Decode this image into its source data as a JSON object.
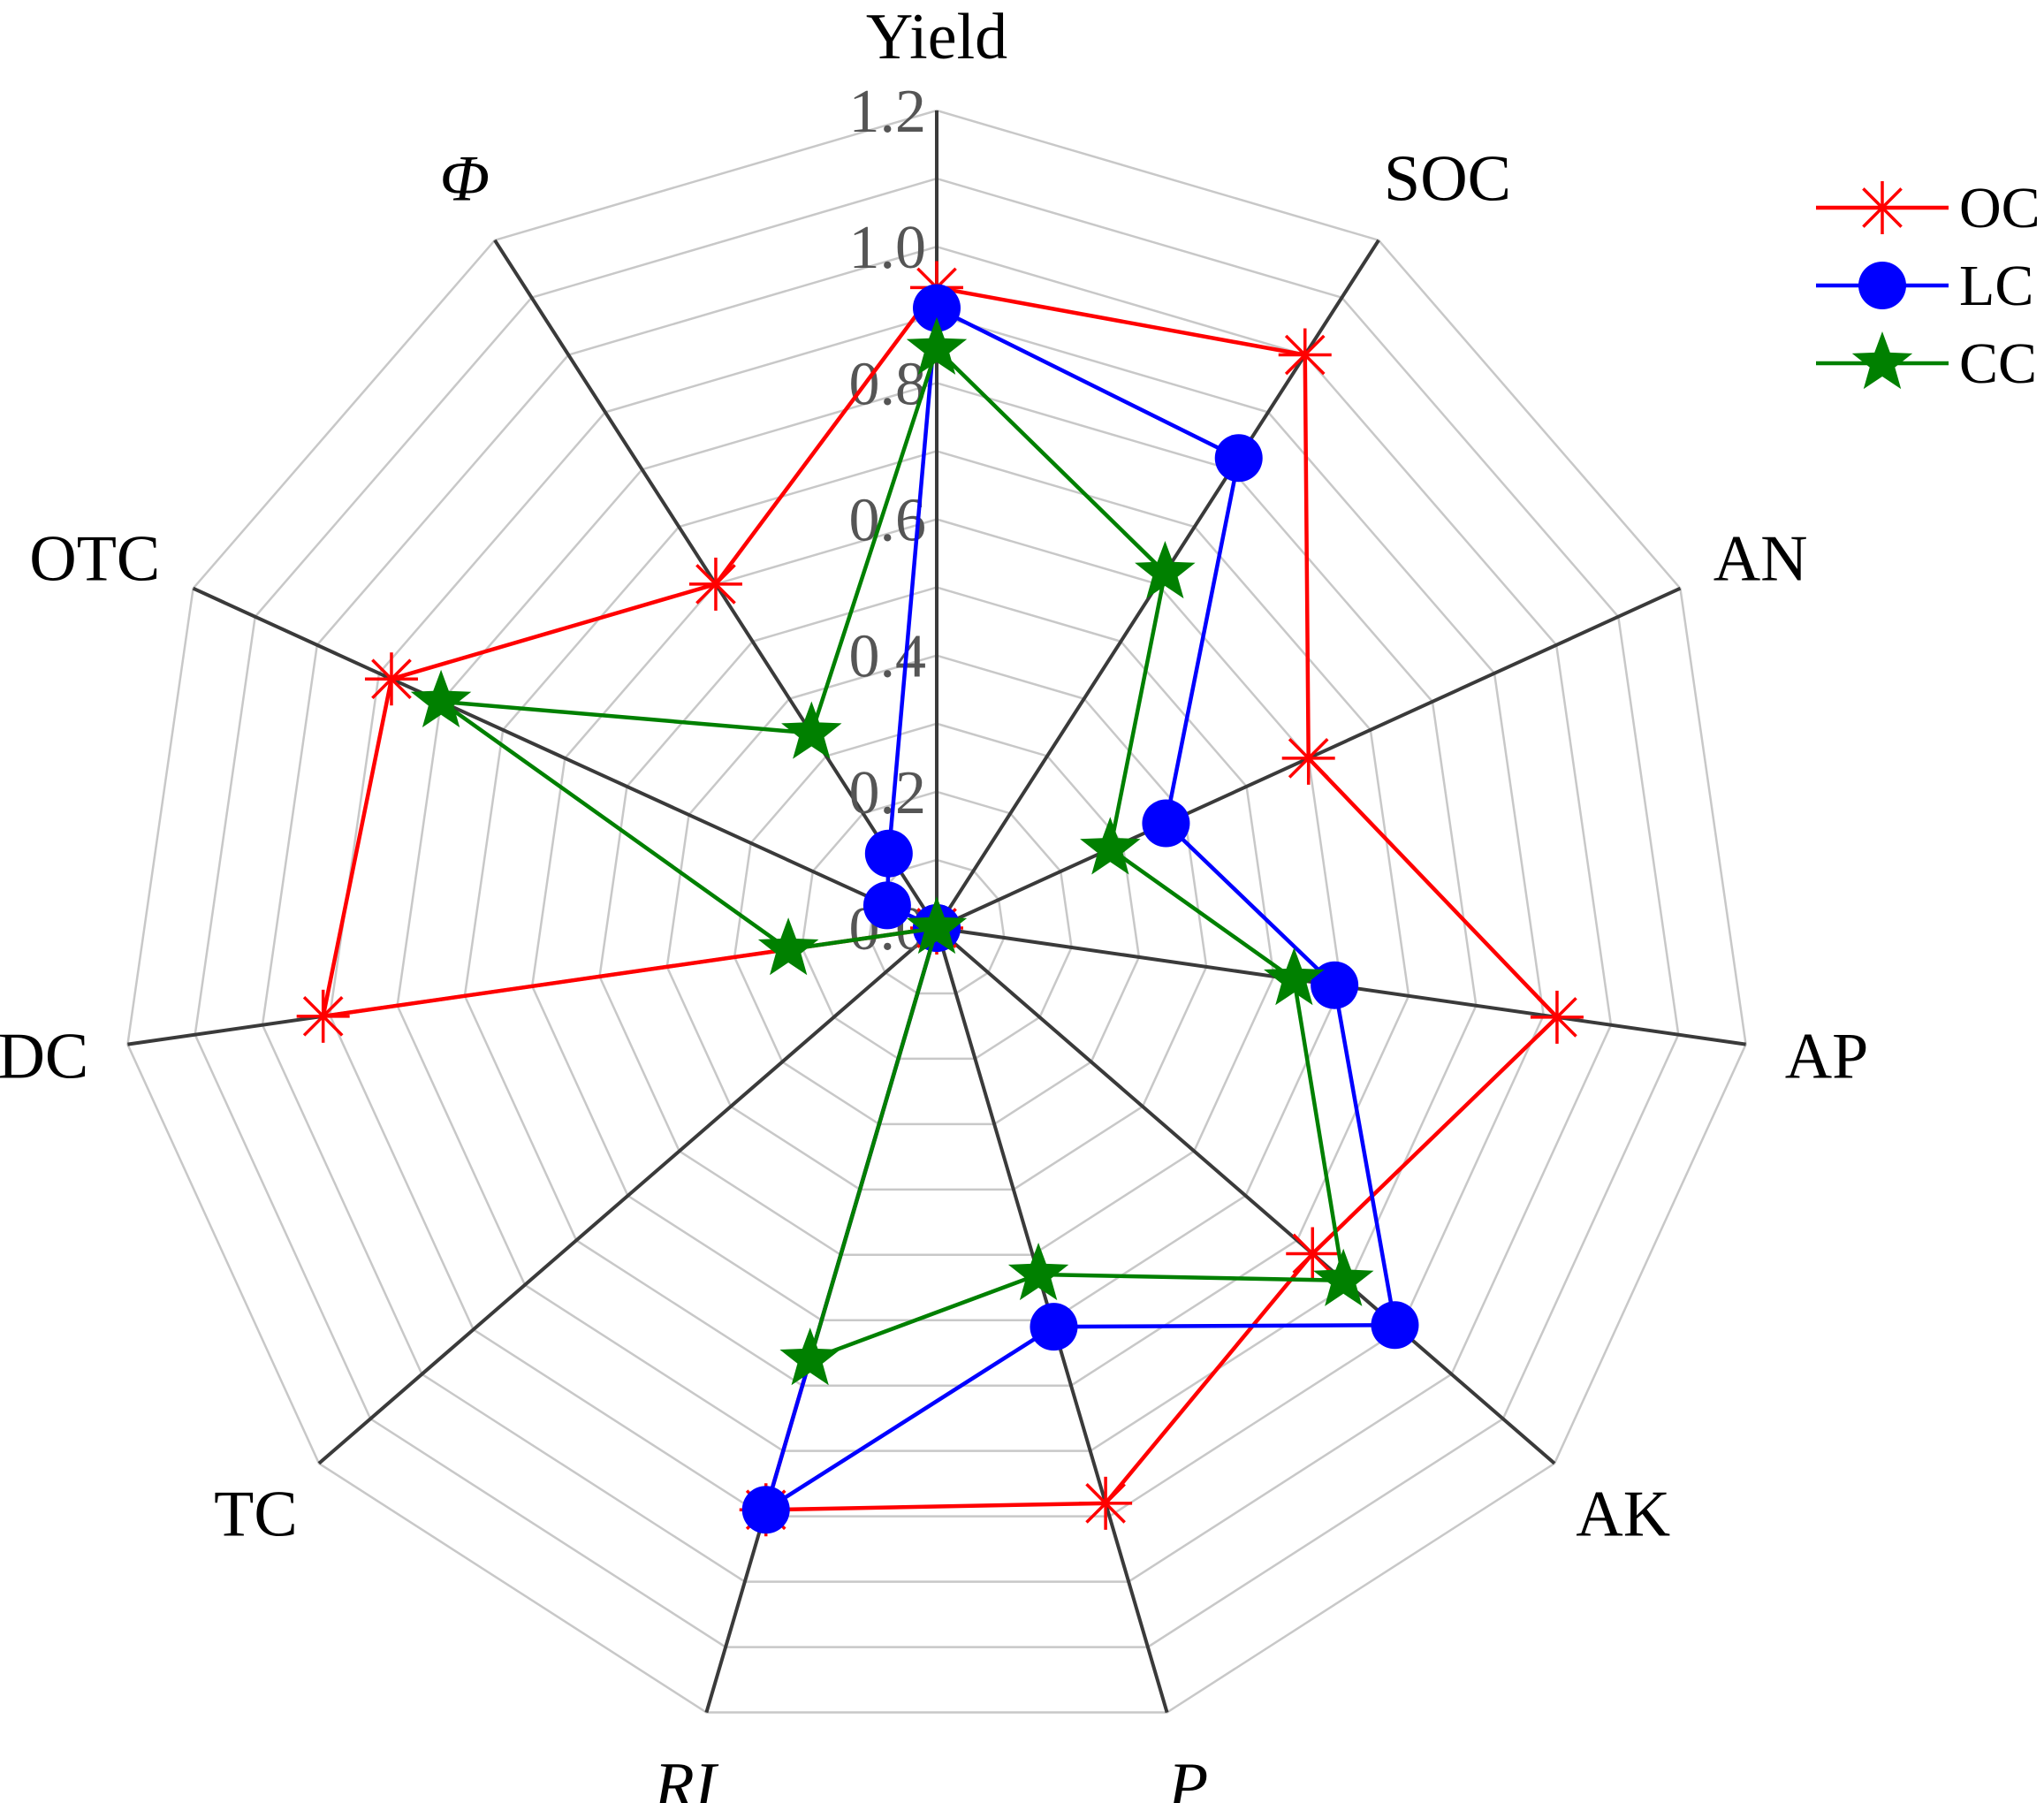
{
  "chart_data": {
    "type": "radar",
    "axes": [
      "Yield",
      "SOC",
      "AN",
      "AP",
      "AK",
      "P",
      "RI",
      "TC",
      "DC",
      "OTC",
      "Φ"
    ],
    "italic_axes": [
      "P",
      "RI",
      "Φ"
    ],
    "rlim": [
      0,
      1.2
    ],
    "ticks": [
      "0.0",
      "0.2",
      "0.4",
      "0.6",
      "0.8",
      "1.0",
      "1.2"
    ],
    "tick_values": [
      0,
      0.2,
      0.4,
      0.6,
      0.8,
      1.0,
      1.2
    ],
    "grid": true,
    "legend_position": "top-right",
    "series": [
      {
        "name": "OC",
        "color": "#ff0000",
        "marker": "asterisk",
        "values": [
          0.94,
          1.0,
          0.6,
          0.92,
          0.73,
          0.88,
          0.89,
          0.0,
          0.91,
          0.88,
          0.6
        ]
      },
      {
        "name": "LC",
        "color": "#0000ff",
        "marker": "circle",
        "values": [
          0.91,
          0.82,
          0.37,
          0.59,
          0.89,
          0.61,
          0.89,
          0.0,
          0.0,
          0.08,
          0.13
        ]
      },
      {
        "name": "CC",
        "color": "#008000",
        "marker": "star",
        "values": [
          0.85,
          0.62,
          0.28,
          0.53,
          0.79,
          0.53,
          0.66,
          0.0,
          0.22,
          0.8,
          0.34
        ]
      }
    ]
  }
}
